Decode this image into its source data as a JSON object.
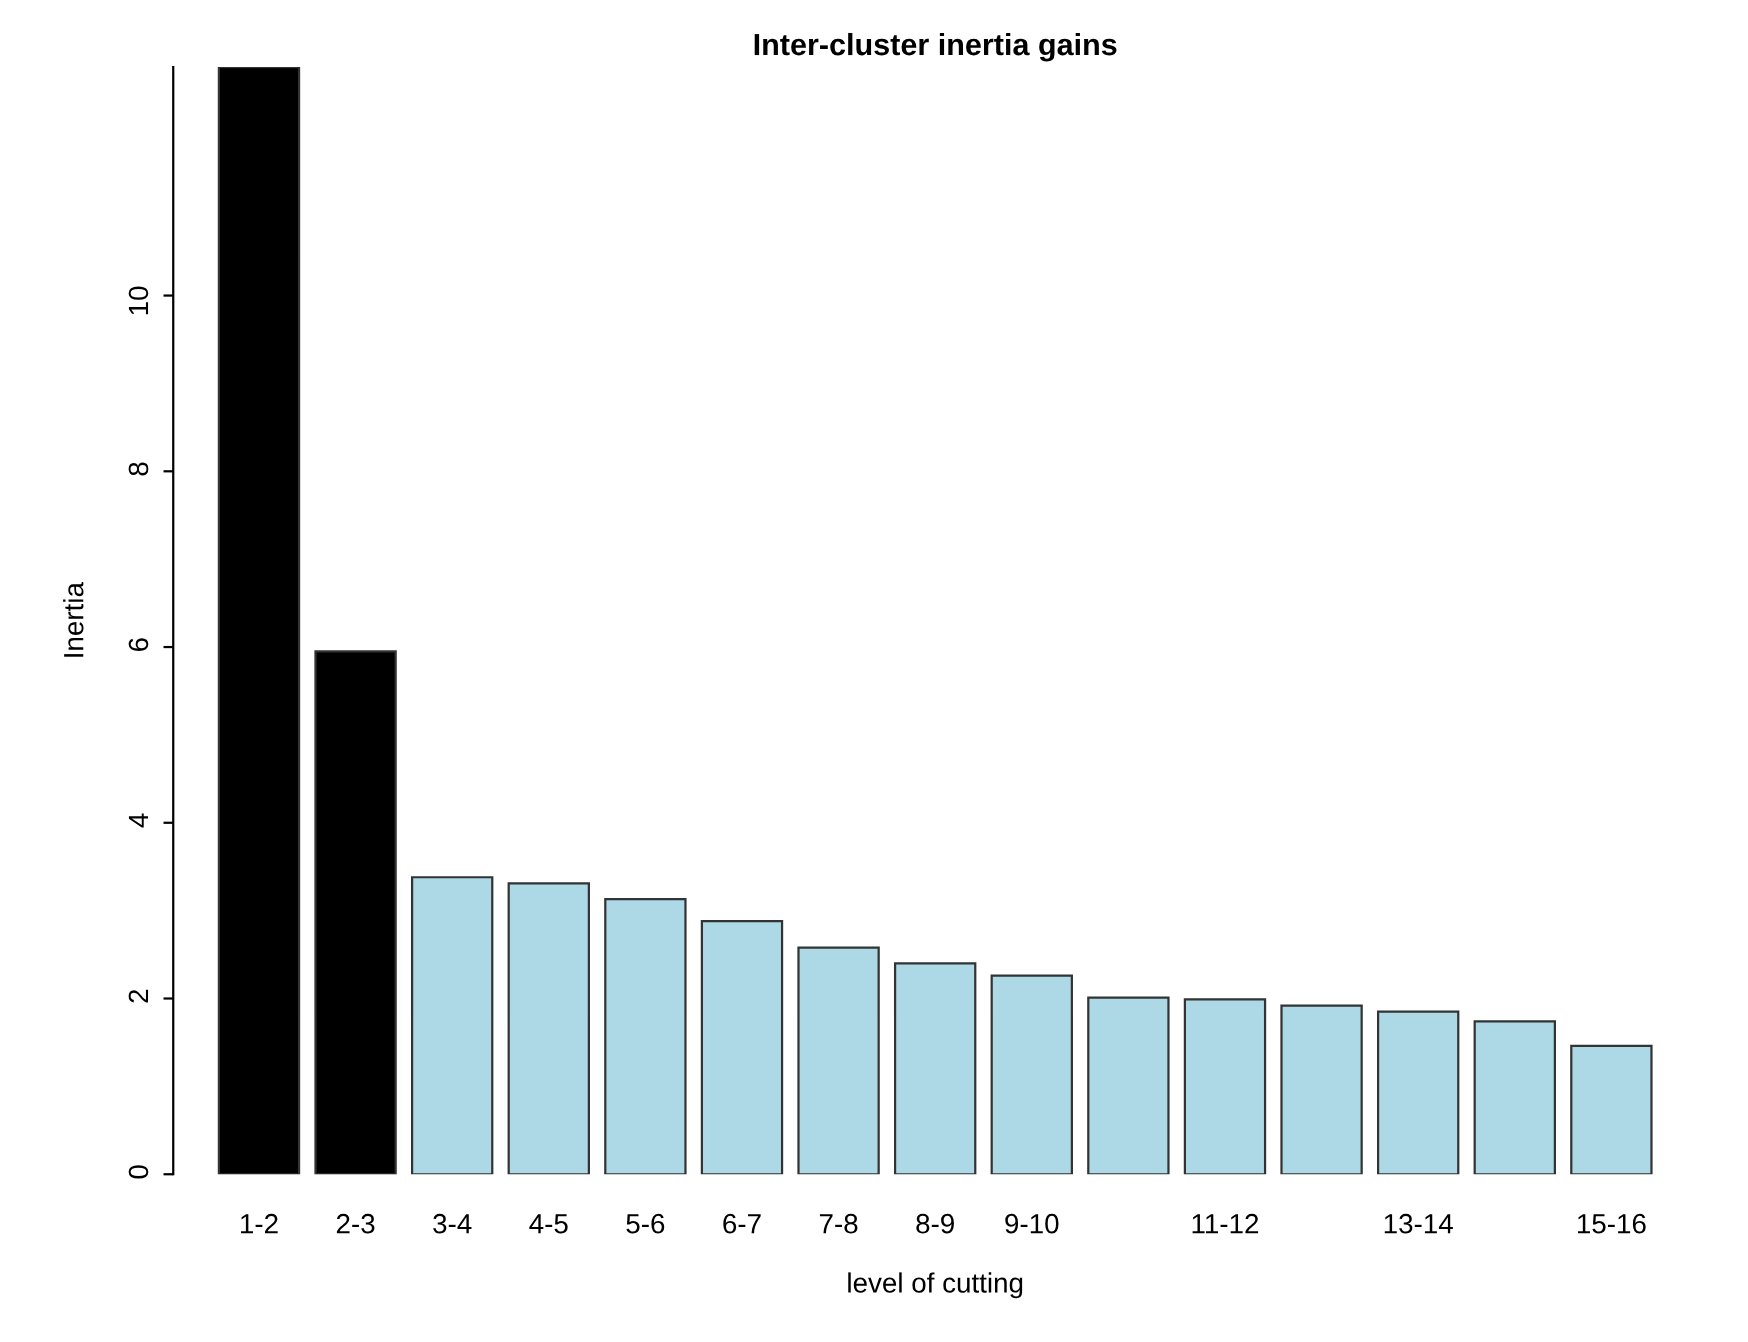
{
  "chart_data": {
    "type": "bar",
    "title": "Inter-cluster inertia gains",
    "xlabel": "level of cutting",
    "ylabel": "Inertia",
    "categories": [
      "1-2",
      "2-3",
      "3-4",
      "4-5",
      "5-6",
      "6-7",
      "7-8",
      "8-9",
      "9-10",
      null,
      "11-12",
      null,
      "13-14",
      null,
      "15-16"
    ],
    "values": [
      12.6,
      5.95,
      3.38,
      3.31,
      3.13,
      2.88,
      2.58,
      2.4,
      2.26,
      2.01,
      1.99,
      1.92,
      1.85,
      1.74,
      1.46
    ],
    "colors": [
      "#000000",
      "#000000",
      "#add8e6",
      "#add8e6",
      "#add8e6",
      "#add8e6",
      "#add8e6",
      "#add8e6",
      "#add8e6",
      "#add8e6",
      "#add8e6",
      "#add8e6",
      "#add8e6",
      "#add8e6",
      "#add8e6"
    ],
    "ylim": [
      0,
      12.6
    ],
    "yticks": [
      0,
      2,
      4,
      6,
      8,
      10
    ],
    "grid": false,
    "legend": false
  }
}
